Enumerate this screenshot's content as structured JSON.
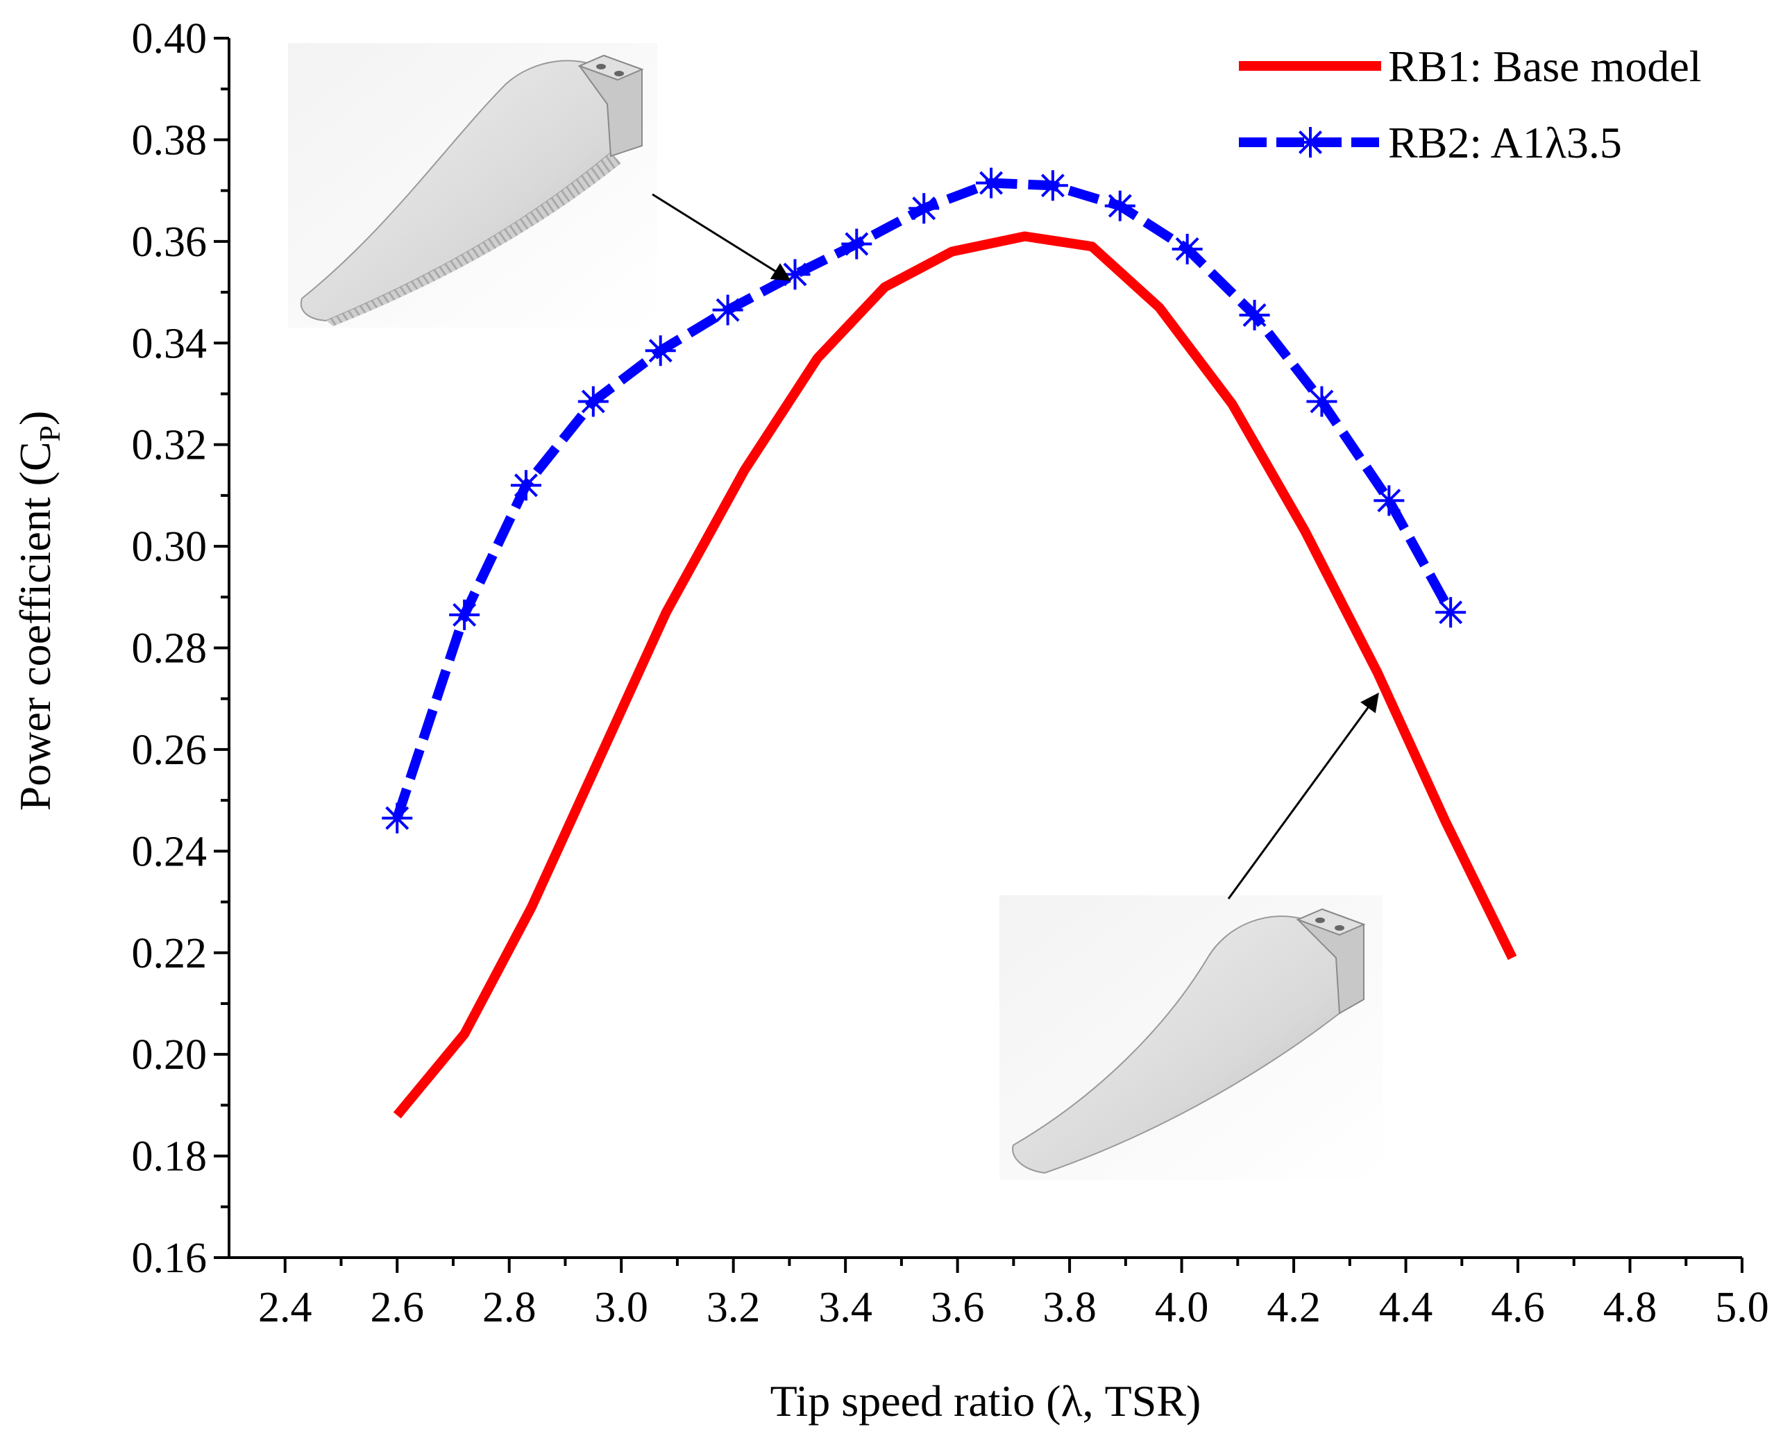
{
  "chart_data": {
    "type": "line",
    "title": "",
    "xlabel": "Tip speed ratio (λ, TSR)",
    "ylabel": "Power coefficient (C",
    "ylabel_sub": "P",
    "ylabel_close": ")",
    "xlim": [
      2.3,
      5.0
    ],
    "ylim": [
      0.16,
      0.4
    ],
    "xticks": [
      2.4,
      2.6,
      2.8,
      3.0,
      3.2,
      3.4,
      3.6,
      3.8,
      4.0,
      4.2,
      4.4,
      4.6,
      4.8,
      5.0
    ],
    "xtick_labels": [
      "2.4",
      "2.6",
      "2.8",
      "3.0",
      "3.2",
      "3.4",
      "3.6",
      "3.8",
      "4.0",
      "4.2",
      "4.4",
      "4.6",
      "4.8",
      "5.0"
    ],
    "yticks": [
      0.16,
      0.18,
      0.2,
      0.22,
      0.24,
      0.26,
      0.28,
      0.3,
      0.32,
      0.34,
      0.36,
      0.38,
      0.4
    ],
    "ytick_labels": [
      "0.16",
      "0.18",
      "0.20",
      "0.22",
      "0.24",
      "0.26",
      "0.28",
      "0.30",
      "0.32",
      "0.34",
      "0.36",
      "0.38",
      "0.40"
    ],
    "legend_position": "top-right",
    "series": [
      {
        "name": "RB1: Base model",
        "color": "#ff0000",
        "style": "solid",
        "marker": "none",
        "x": [
          2.6,
          2.72,
          2.84,
          2.96,
          3.08,
          3.22,
          3.35,
          3.47,
          3.59,
          3.72,
          3.84,
          3.96,
          4.09,
          4.22,
          4.35,
          4.47,
          4.59
        ],
        "y": [
          0.188,
          0.204,
          0.229,
          0.258,
          0.287,
          0.315,
          0.337,
          0.351,
          0.358,
          0.361,
          0.359,
          0.347,
          0.328,
          0.303,
          0.275,
          0.246,
          0.219
        ]
      },
      {
        "name": "RB2: A1λ3.5",
        "color": "#0000ff",
        "style": "dashed",
        "marker": "asterisk",
        "x": [
          2.6,
          2.72,
          2.83,
          2.95,
          3.07,
          3.19,
          3.31,
          3.42,
          3.54,
          3.66,
          3.77,
          3.89,
          4.01,
          4.13,
          4.25,
          4.37,
          4.48
        ],
        "y": [
          0.2465,
          0.2865,
          0.312,
          0.3285,
          0.3385,
          0.3465,
          0.3535,
          0.3595,
          0.3665,
          0.3715,
          0.371,
          0.367,
          0.3585,
          0.3455,
          0.3285,
          0.309,
          0.287
        ]
      }
    ],
    "annotations": [
      {
        "text": "rendered blade with serrated trailing edge (RB2), arrow to blue curve",
        "target_series": "RB2: A1λ3.5",
        "target_x": 3.31,
        "target_y": 0.3535
      },
      {
        "text": "rendered base blade (RB1), arrow to red curve",
        "target_series": "RB1: Base model",
        "target_x": 4.36,
        "target_y": 0.272
      }
    ]
  }
}
